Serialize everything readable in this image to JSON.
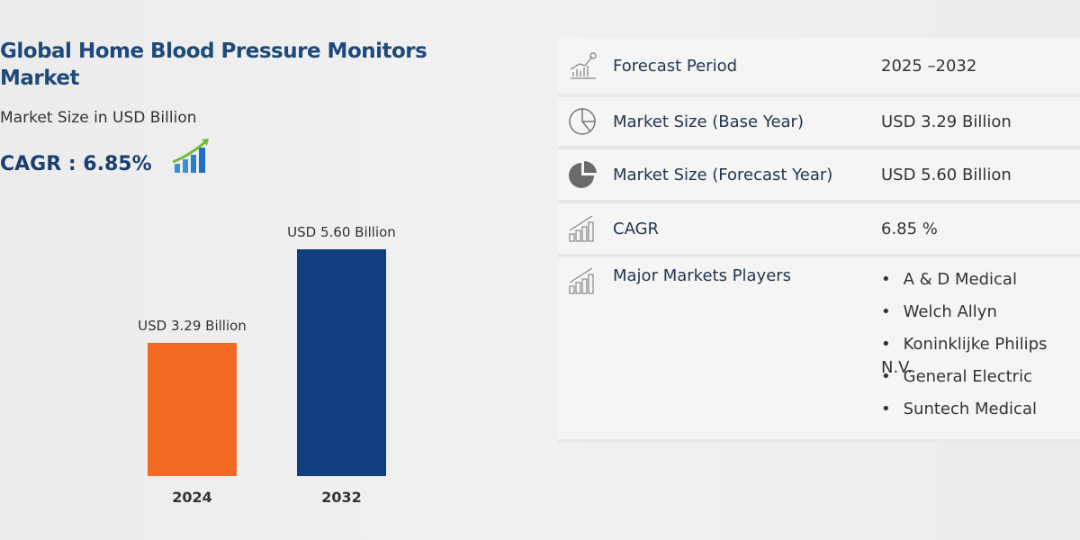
{
  "title": "Global Home Blood Pressure Monitors Market",
  "subtitle": "Market Size in USD Billion",
  "cagr_label": "CAGR : 6.85%",
  "colors": {
    "bar_2024": "#f26a22",
    "bar_2032": "#0e3f7f",
    "title": "#1d4a7a"
  },
  "chart_data": {
    "type": "bar",
    "categories": [
      "2024",
      "2032"
    ],
    "values": [
      3.29,
      5.6
    ],
    "data_labels": [
      "USD 3.29 Billion",
      "USD 5.60 Billion"
    ],
    "ylabel": "",
    "ylim": [
      0,
      6
    ],
    "grid": false
  },
  "table": {
    "rows": [
      {
        "icon": "chart-growth-icon",
        "label": "Forecast Period",
        "value": "2025 –2032"
      },
      {
        "icon": "pie-chart-outline-icon",
        "label": "Market Size (Base Year)",
        "value": "USD 3.29 Billion"
      },
      {
        "icon": "pie-chart-filled-icon",
        "label": "Market Size (Forecast Year)",
        "value": "USD 5.60 Billion"
      },
      {
        "icon": "bar-chart-icon",
        "label": "CAGR",
        "value": "6.85 %"
      }
    ],
    "players_label": "Major Markets Players",
    "players": [
      "A & D Medical",
      "Welch Allyn",
      "Koninklijke Philips N.V.",
      "General Electric",
      "Suntech Medical"
    ]
  }
}
